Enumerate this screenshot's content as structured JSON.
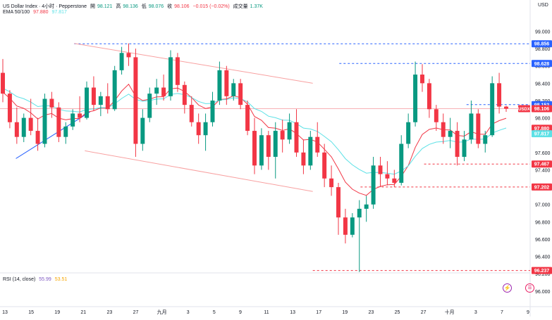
{
  "header": {
    "symbol_line": "US Dollar Index · 4小时 · Pepperstone",
    "open_label": "開",
    "open": "98.121",
    "high_label": "高",
    "high": "98.136",
    "low_label": "低",
    "low": "98.076",
    "close_label": "收",
    "close": "98.106",
    "change": "−0.015 (−0.02%)",
    "volume_label": "成交量",
    "volume": "1.37K",
    "ema_label": "EMA 50/100",
    "ema50": "97.880",
    "ema100": "97.817",
    "currency": "USD"
  },
  "rsi": {
    "label": "RSI (14, close)",
    "value1": "55.99",
    "value2": "53.51"
  },
  "colors": {
    "up": "#089981",
    "down": "#f23645",
    "ema50": "#f23645",
    "ema100": "#5ce1e6",
    "trend": "#2962ff",
    "level_blue": "#2962ff",
    "level_red": "#f23645"
  },
  "chart_data": {
    "type": "candlestick",
    "x_ticks": [
      "13",
      "15",
      "19",
      "21",
      "23",
      "27",
      "九月",
      "3",
      "5",
      "9",
      "11",
      "13",
      "17",
      "19",
      "23",
      "25",
      "27",
      "十月",
      "3",
      "7",
      "9"
    ],
    "y_ticks": [
      "99.000",
      "98.800",
      "98.600",
      "98.400",
      "98.200",
      "98.000",
      "97.800",
      "97.600",
      "97.400",
      "97.200",
      "97.000",
      "96.800",
      "96.600",
      "96.400",
      "96.200",
      "96.000"
    ],
    "ylim": [
      95.95,
      99.15
    ],
    "price_labels": [
      {
        "text": "98.856",
        "value": 98.856,
        "color": "#2962ff"
      },
      {
        "text": "98.628",
        "value": 98.628,
        "color": "#2962ff"
      },
      {
        "text": "98.153",
        "value": 98.153,
        "color": "#2962ff"
      },
      {
        "text": "98.106",
        "value": 98.106,
        "color": "#f23645"
      },
      {
        "text": "97.880",
        "value": 97.88,
        "color": "#f23645"
      },
      {
        "text": "97.817",
        "value": 97.817,
        "color": "#5ce1e6"
      },
      {
        "text": "97.467",
        "value": 97.467,
        "color": "#f23645"
      },
      {
        "text": "97.202",
        "value": 97.202,
        "color": "#f23645"
      },
      {
        "text": "96.237",
        "value": 96.237,
        "color": "#f23645"
      }
    ],
    "symbol_tag": "USDX",
    "levels": [
      {
        "value": 98.856,
        "from": 0.14,
        "color": "#2962ff"
      },
      {
        "value": 98.628,
        "from": 0.64,
        "color": "#2962ff"
      },
      {
        "value": 98.153,
        "from": 0.88,
        "color": "#2962ff"
      },
      {
        "value": 97.467,
        "from": 0.8,
        "color": "#f23645"
      },
      {
        "value": 97.202,
        "from": 0.68,
        "color": "#f23645"
      },
      {
        "value": 96.237,
        "from": 0.59,
        "color": "#f23645"
      }
    ],
    "trendlines": [
      {
        "x1": 0.14,
        "y1": 98.86,
        "x2": 0.59,
        "y2": 98.4,
        "color": "#f8a0a0"
      },
      {
        "x1": 0.16,
        "y1": 97.62,
        "x2": 0.59,
        "y2": 97.15,
        "color": "#f8a0a0"
      },
      {
        "x1": 0.03,
        "y1": 97.53,
        "x2": 0.17,
        "y2": 98.07,
        "color": "#2962ff"
      }
    ],
    "candles": [
      [
        98.52,
        98.68,
        98.18,
        98.28
      ],
      [
        98.28,
        98.32,
        97.88,
        97.95
      ],
      [
        97.95,
        98.12,
        97.7,
        97.78
      ],
      [
        97.78,
        98.05,
        97.72,
        98.0
      ],
      [
        98.0,
        98.22,
        97.8,
        97.85
      ],
      [
        97.85,
        98.0,
        97.62,
        97.7
      ],
      [
        97.7,
        98.28,
        97.66,
        98.22
      ],
      [
        98.22,
        98.3,
        98.0,
        98.12
      ],
      [
        98.12,
        98.18,
        97.72,
        97.78
      ],
      [
        97.78,
        97.95,
        97.7,
        97.9
      ],
      [
        97.9,
        98.1,
        97.86,
        98.05
      ],
      [
        98.05,
        98.25,
        97.95,
        98.0
      ],
      [
        98.0,
        98.42,
        97.98,
        98.35
      ],
      [
        98.35,
        98.48,
        98.08,
        98.15
      ],
      [
        98.15,
        98.3,
        98.02,
        98.25
      ],
      [
        98.25,
        98.4,
        98.05,
        98.1
      ],
      [
        98.1,
        98.6,
        98.08,
        98.55
      ],
      [
        98.55,
        98.82,
        98.5,
        98.75
      ],
      [
        98.75,
        98.86,
        98.6,
        98.7
      ],
      [
        98.7,
        98.8,
        97.55,
        97.7
      ],
      [
        97.7,
        98.1,
        97.62,
        98.0
      ],
      [
        98.0,
        98.35,
        97.95,
        98.28
      ],
      [
        98.28,
        98.45,
        98.15,
        98.35
      ],
      [
        98.35,
        98.5,
        98.2,
        98.25
      ],
      [
        98.25,
        98.78,
        98.2,
        98.7
      ],
      [
        98.7,
        98.75,
        98.3,
        98.38
      ],
      [
        98.38,
        98.42,
        98.05,
        98.15
      ],
      [
        98.15,
        98.25,
        97.9,
        97.95
      ],
      [
        97.95,
        98.05,
        97.7,
        97.8
      ],
      [
        97.8,
        98.05,
        97.62,
        97.95
      ],
      [
        97.95,
        98.3,
        97.9,
        98.2
      ],
      [
        98.2,
        98.65,
        98.15,
        98.55
      ],
      [
        98.55,
        98.6,
        98.15,
        98.25
      ],
      [
        98.25,
        98.45,
        98.2,
        98.4
      ],
      [
        98.4,
        98.45,
        98.1,
        98.15
      ],
      [
        98.15,
        98.2,
        97.8,
        97.85
      ],
      [
        97.85,
        98.0,
        97.35,
        97.45
      ],
      [
        97.45,
        97.88,
        97.4,
        97.8
      ],
      [
        97.8,
        97.85,
        97.4,
        97.55
      ],
      [
        97.55,
        97.95,
        97.3,
        97.85
      ],
      [
        97.85,
        97.98,
        97.6,
        97.75
      ],
      [
        97.75,
        98.05,
        97.7,
        97.95
      ],
      [
        97.95,
        98.1,
        97.55,
        97.6
      ],
      [
        97.6,
        97.75,
        97.35,
        97.45
      ],
      [
        97.45,
        97.85,
        97.4,
        97.78
      ],
      [
        97.78,
        97.95,
        97.55,
        97.6
      ],
      [
        97.6,
        97.7,
        97.2,
        97.3
      ],
      [
        97.3,
        97.45,
        97.1,
        97.2
      ],
      [
        97.2,
        97.25,
        96.65,
        96.85
      ],
      [
        96.85,
        96.95,
        96.55,
        96.65
      ],
      [
        96.65,
        96.9,
        96.62,
        96.85
      ],
      [
        96.85,
        97.05,
        96.22,
        96.95
      ],
      [
        96.95,
        97.1,
        96.8,
        97.0
      ],
      [
        97.0,
        97.55,
        96.95,
        97.45
      ],
      [
        97.45,
        97.55,
        97.2,
        97.35
      ],
      [
        97.35,
        97.5,
        97.22,
        97.3
      ],
      [
        97.3,
        97.4,
        97.2,
        97.25
      ],
      [
        97.25,
        97.8,
        97.22,
        97.7
      ],
      [
        97.7,
        98.05,
        97.65,
        97.95
      ],
      [
        97.95,
        98.65,
        97.9,
        98.5
      ],
      [
        98.5,
        98.62,
        98.3,
        98.4
      ],
      [
        98.4,
        98.45,
        98.0,
        98.1
      ],
      [
        98.1,
        98.15,
        97.85,
        97.95
      ],
      [
        97.95,
        98.05,
        97.7,
        97.78
      ],
      [
        97.78,
        98.0,
        97.65,
        97.85
      ],
      [
        97.85,
        97.95,
        97.45,
        97.55
      ],
      [
        97.55,
        97.85,
        97.5,
        97.75
      ],
      [
        97.75,
        98.2,
        97.7,
        98.05
      ],
      [
        98.05,
        98.1,
        97.65,
        97.7
      ],
      [
        97.7,
        97.85,
        97.6,
        97.8
      ],
      [
        97.8,
        98.48,
        97.78,
        98.4
      ],
      [
        98.4,
        98.52,
        98.05,
        98.13
      ],
      [
        98.13,
        98.14,
        98.07,
        98.106
      ]
    ]
  }
}
